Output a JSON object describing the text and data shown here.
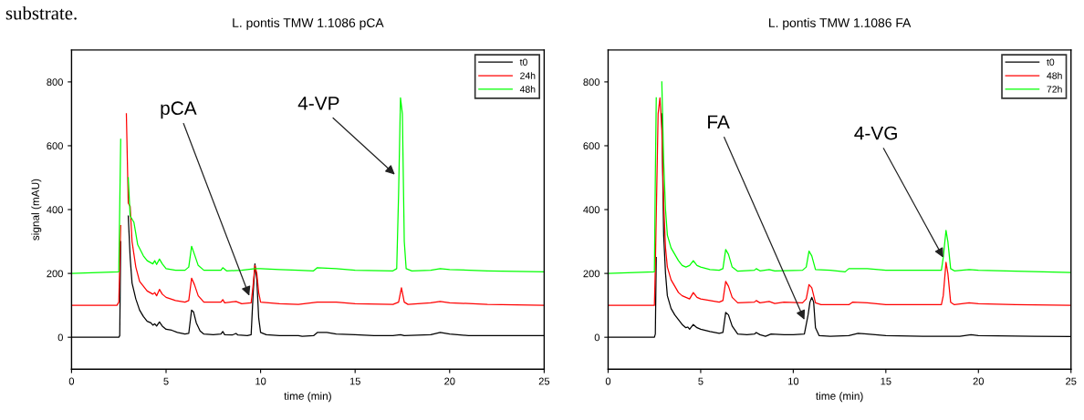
{
  "chart_data": [
    {
      "type": "line",
      "title": "L. pontis TMW 1.1086 pCA",
      "xlabel": "time (min)",
      "ylabel": "signal (mAU)",
      "xlim": [
        0,
        25
      ],
      "ylim": [
        -100,
        900
      ],
      "xticks": [
        0,
        5,
        10,
        15,
        20,
        25
      ],
      "yticks": [
        0,
        200,
        400,
        600,
        800
      ],
      "grid": false,
      "legend": "top right",
      "marker": "none",
      "line_style": "solid",
      "annotations": [
        "substrate.",
        {
          "text": "pCA",
          "x": 9.4,
          "y": 130
        },
        {
          "text": "4-VP",
          "x": 17.1,
          "y": 510
        }
      ],
      "series": [
        {
          "name": "t0",
          "color": "#000000",
          "x": [
            0,
            2.5,
            2.55,
            2.6,
            2.7,
            2.8,
            2.9,
            3.0,
            3.1,
            3.2,
            3.4,
            3.6,
            3.8,
            4.0,
            4.2,
            4.3,
            4.4,
            4.5,
            4.65,
            4.8,
            5.0,
            5.3,
            5.6,
            6.0,
            6.2,
            6.35,
            6.45,
            6.6,
            6.8,
            7.0,
            7.5,
            7.9,
            8.0,
            8.1,
            8.5,
            8.7,
            8.8,
            9.3,
            9.5,
            9.6,
            9.7,
            9.8,
            9.9,
            10.0,
            10.3,
            11,
            12,
            12.2,
            12.8,
            13.0,
            13.5,
            14,
            15,
            16,
            17,
            17.4,
            17.6,
            19,
            19.5,
            20,
            21,
            23,
            25
          ],
          "values": [
            0,
            0,
            5,
            300,
            null,
            null,
            null,
            380,
            250,
            170,
            120,
            85,
            65,
            50,
            45,
            38,
            42,
            35,
            48,
            35,
            25,
            22,
            15,
            10,
            12,
            85,
            80,
            45,
            20,
            10,
            8,
            10,
            18,
            8,
            7,
            12,
            7,
            5,
            8,
            130,
            230,
            180,
            60,
            15,
            8,
            5,
            5,
            3,
            5,
            15,
            15,
            10,
            8,
            5,
            5,
            8,
            5,
            8,
            15,
            10,
            5,
            5,
            5
          ]
        },
        {
          "name": "24h",
          "color": "#ff0000",
          "x": [
            0,
            2.4,
            2.5,
            2.6,
            2.7,
            2.8,
            2.9,
            3.0,
            3.1,
            3.2,
            3.4,
            3.6,
            3.8,
            4.0,
            4.3,
            4.4,
            4.5,
            4.65,
            4.8,
            5.0,
            5.5,
            6.0,
            6.2,
            6.35,
            6.5,
            6.7,
            7.0,
            7.9,
            8.0,
            8.1,
            8.7,
            9.0,
            9.5,
            9.6,
            9.7,
            9.8,
            9.9,
            10.0,
            11,
            12,
            13,
            14,
            15,
            17,
            17.3,
            17.45,
            17.6,
            17.8,
            19,
            19.5,
            20,
            22,
            25
          ],
          "values": [
            100,
            100,
            110,
            350,
            null,
            null,
            700,
            420,
            410,
            300,
            220,
            175,
            160,
            145,
            135,
            140,
            130,
            150,
            135,
            125,
            115,
            110,
            115,
            185,
            165,
            130,
            110,
            110,
            118,
            108,
            112,
            105,
            108,
            160,
            225,
            200,
            140,
            110,
            105,
            103,
            110,
            110,
            105,
            103,
            110,
            155,
            110,
            103,
            108,
            112,
            108,
            103,
            100
          ]
        },
        {
          "name": "48h",
          "color": "#00ff00",
          "x": [
            0,
            2.5,
            2.6,
            2.7,
            2.8,
            2.9,
            3.0,
            3.1,
            3.3,
            3.5,
            3.8,
            4.0,
            4.3,
            4.4,
            4.5,
            4.65,
            4.8,
            5.0,
            5.5,
            6.0,
            6.2,
            6.35,
            6.5,
            6.7,
            7.0,
            7.9,
            8.0,
            8.2,
            9.0,
            9.7,
            10,
            11,
            12,
            12.8,
            13.0,
            14,
            15,
            17,
            17.2,
            17.3,
            17.4,
            17.5,
            17.6,
            17.7,
            18,
            19,
            19.5,
            20,
            22,
            25
          ],
          "values": [
            200,
            205,
            620,
            null,
            null,
            null,
            500,
            380,
            360,
            290,
            255,
            240,
            230,
            240,
            228,
            245,
            230,
            215,
            210,
            210,
            220,
            285,
            260,
            225,
            210,
            210,
            218,
            208,
            210,
            215,
            215,
            212,
            210,
            208,
            218,
            215,
            210,
            208,
            215,
            450,
            750,
            700,
            300,
            215,
            208,
            210,
            215,
            212,
            208,
            205
          ]
        }
      ]
    },
    {
      "type": "line",
      "title": "L. pontis TMW 1.1086 FA",
      "xlabel": "time (min)",
      "xlim": [
        0,
        25
      ],
      "ylim": [
        -100,
        900
      ],
      "xticks": [
        0,
        5,
        10,
        15,
        20,
        25
      ],
      "yticks": [
        0,
        200,
        400,
        600,
        800
      ],
      "grid": false,
      "legend": "top right",
      "marker": "none",
      "line_style": "solid",
      "annotations": [
        {
          "text": "FA",
          "x": 10.6,
          "y": 55
        },
        {
          "text": "4-VG",
          "x": 18.1,
          "y": 250
        }
      ],
      "series": [
        {
          "name": "t0",
          "color": "#000000",
          "x": [
            0,
            2.5,
            2.55,
            2.6,
            2.7,
            2.8,
            2.9,
            3.0,
            3.1,
            3.2,
            3.4,
            3.6,
            3.8,
            4.0,
            4.2,
            4.3,
            4.4,
            4.6,
            4.8,
            5.0,
            5.5,
            6.0,
            6.2,
            6.35,
            6.5,
            6.7,
            7.0,
            7.5,
            7.9,
            8.0,
            8.2,
            8.5,
            8.8,
            9.5,
            10,
            10.6,
            10.8,
            10.9,
            11.0,
            11.1,
            11.2,
            11.4,
            12,
            13,
            13.5,
            14,
            15,
            17,
            19,
            19.6,
            20,
            23,
            25
          ],
          "values": [
            0,
            0,
            10,
            250,
            null,
            null,
            700,
            320,
            200,
            130,
            90,
            70,
            55,
            40,
            30,
            32,
            25,
            40,
            30,
            25,
            18,
            12,
            15,
            78,
            70,
            35,
            10,
            8,
            10,
            15,
            8,
            3,
            10,
            8,
            8,
            10,
            70,
            110,
            125,
            110,
            30,
            5,
            3,
            5,
            12,
            10,
            5,
            3,
            3,
            8,
            5,
            3,
            2
          ]
        },
        {
          "name": "48h",
          "color": "#ff0000",
          "x": [
            0,
            2.5,
            2.55,
            2.6,
            2.7,
            2.8,
            2.9,
            3.0,
            3.1,
            3.2,
            3.4,
            3.6,
            3.8,
            4.0,
            4.2,
            4.4,
            4.6,
            4.8,
            5.0,
            5.5,
            6.0,
            6.2,
            6.35,
            6.5,
            6.7,
            7.0,
            7.9,
            8.0,
            8.2,
            8.7,
            9.0,
            9.5,
            10.5,
            10.7,
            10.85,
            11.0,
            11.2,
            11.5,
            13,
            13.2,
            14,
            15,
            18,
            18.1,
            18.25,
            18.35,
            18.5,
            18.7,
            19.5,
            20,
            22,
            25
          ],
          "values": [
            100,
            100,
            220,
            380,
            700,
            750,
            650,
            420,
            280,
            220,
            180,
            160,
            140,
            130,
            125,
            120,
            140,
            125,
            120,
            115,
            110,
            115,
            175,
            160,
            125,
            108,
            110,
            115,
            108,
            112,
            106,
            110,
            108,
            120,
            165,
            155,
            108,
            102,
            102,
            110,
            108,
            102,
            102,
            130,
            235,
            200,
            110,
            102,
            108,
            105,
            102,
            100
          ]
        },
        {
          "name": "72h",
          "color": "#00ff00",
          "x": [
            0,
            2.5,
            2.55,
            2.6,
            2.7,
            2.8,
            2.9,
            3.0,
            3.1,
            3.2,
            3.4,
            3.6,
            3.8,
            4.0,
            4.2,
            4.4,
            4.6,
            4.8,
            5.0,
            5.5,
            6.0,
            6.2,
            6.35,
            6.5,
            6.7,
            7.0,
            7.9,
            8.0,
            8.2,
            8.7,
            9.0,
            10.5,
            10.7,
            10.85,
            11.0,
            11.2,
            12,
            12.8,
            13.0,
            14,
            15,
            18,
            18.1,
            18.25,
            18.35,
            18.5,
            18.7,
            19.5,
            20,
            22,
            25
          ],
          "values": [
            200,
            205,
            500,
            750,
            null,
            null,
            800,
            550,
            400,
            320,
            280,
            260,
            240,
            225,
            220,
            225,
            240,
            225,
            220,
            212,
            210,
            215,
            275,
            260,
            220,
            207,
            210,
            215,
            208,
            212,
            208,
            210,
            220,
            270,
            255,
            212,
            210,
            205,
            215,
            215,
            210,
            210,
            250,
            335,
            300,
            215,
            208,
            212,
            210,
            207,
            203
          ]
        }
      ]
    }
  ]
}
